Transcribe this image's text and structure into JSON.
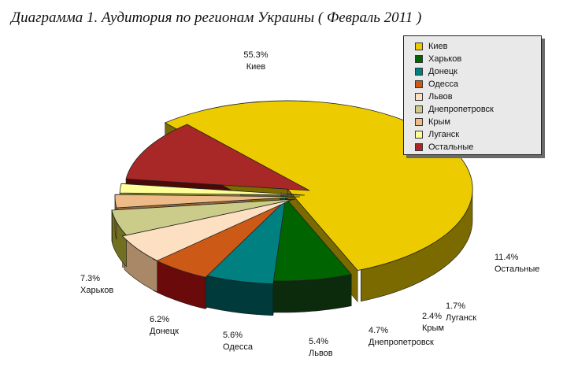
{
  "title": "Диаграмма 1. Аудитория по регионам Украины ( Февраль 2011 )",
  "chart_data": {
    "type": "pie",
    "title": "Диаграмма 1. Аудитория по регионам Украины ( Февраль 2011 )",
    "legend_position": "top-right",
    "slices": [
      {
        "label": "Киев",
        "value": 55.3,
        "value_label": "55.3%",
        "color": "#eccb00",
        "dark": "#7a6a00"
      },
      {
        "label": "Харьков",
        "value": 7.3,
        "value_label": "7.3%",
        "color": "#006400",
        "dark": "#0c2a0c"
      },
      {
        "label": "Донецк",
        "value": 6.2,
        "value_label": "6.2%",
        "color": "#008080",
        "dark": "#003a3a"
      },
      {
        "label": "Одесса",
        "value": 5.6,
        "value_label": "5.6%",
        "color": "#cc5a16",
        "dark": "#6a0a0a"
      },
      {
        "label": "Львов",
        "value": 5.4,
        "value_label": "5.4%",
        "color": "#fde0c2",
        "dark": "#a88866"
      },
      {
        "label": "Днепропетровск",
        "value": 4.7,
        "value_label": "4.7%",
        "color": "#cccc8a",
        "dark": "#707020"
      },
      {
        "label": "Крым",
        "value": 2.4,
        "value_label": "2.4%",
        "color": "#eebb88",
        "dark": "#9a6a3a"
      },
      {
        "label": "Луганск",
        "value": 1.7,
        "value_label": "1.7%",
        "color": "#ffff99",
        "dark": "#a8a83a"
      },
      {
        "label": "Остальные",
        "value": 11.4,
        "value_label": "11.4%",
        "color": "#a82828",
        "dark": "#4a0808"
      }
    ]
  }
}
